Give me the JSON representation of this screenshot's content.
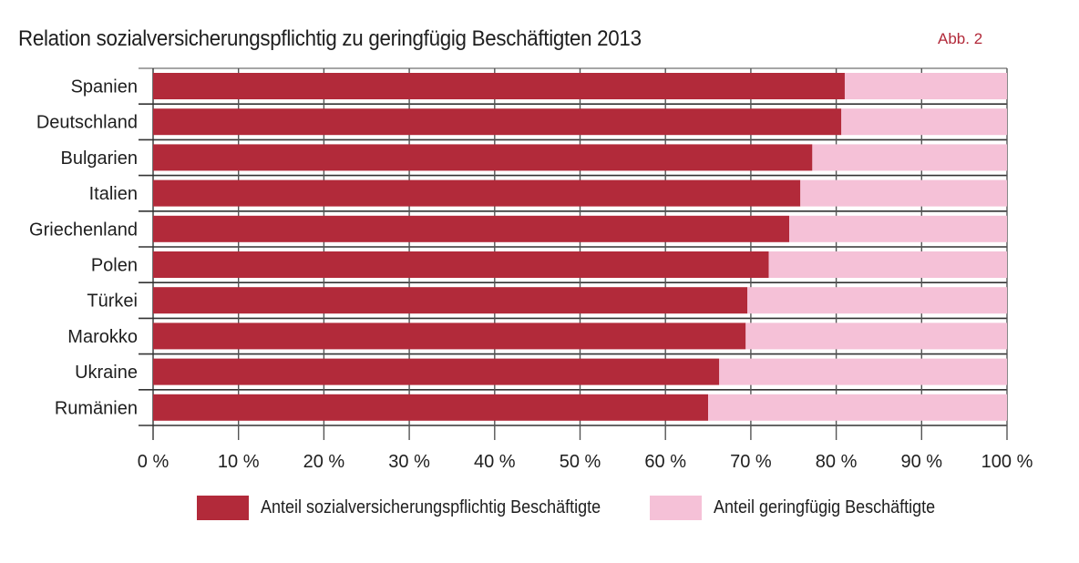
{
  "header": {
    "title": "Relation sozialversicherungspflichtig zu geringfügig Beschäftigten 2013",
    "figure_label": "Abb. 2"
  },
  "colors": {
    "series1": "#b22a3a",
    "series2": "#f5c1d7",
    "figure_label": "#b22a3a",
    "axis": "#333333"
  },
  "chart_data": {
    "type": "bar",
    "orientation": "horizontal",
    "stacked": true,
    "normalized": "percent",
    "title": "Relation sozialversicherungspflichtig zu geringfügig Beschäftigten 2013",
    "categories": [
      "Spanien",
      "Deutschland",
      "Bulgarien",
      "Italien",
      "Griechenland",
      "Polen",
      "Türkei",
      "Marokko",
      "Ukraine",
      "Rumänien"
    ],
    "series": [
      {
        "name": "Anteil sozialversicherungspflichtig Beschäftigte",
        "values": [
          81.0,
          80.6,
          77.2,
          75.8,
          74.5,
          72.1,
          69.6,
          69.4,
          66.3,
          65.0
        ]
      },
      {
        "name": "Anteil geringfügig Beschäftigte",
        "values": [
          19.0,
          19.4,
          22.8,
          24.2,
          25.5,
          27.9,
          30.4,
          30.6,
          33.7,
          35.0
        ]
      }
    ],
    "xlim": [
      0,
      100
    ],
    "x_ticks": [
      0,
      10,
      20,
      30,
      40,
      50,
      60,
      70,
      80,
      90,
      100
    ],
    "x_tick_labels": [
      "0 %",
      "10 %",
      "20 %",
      "30 %",
      "40 %",
      "50 %",
      "60 %",
      "70 %",
      "80 %",
      "90 %",
      "100 %"
    ],
    "xlabel": "",
    "ylabel": "",
    "grid": true,
    "legend_position": "bottom"
  }
}
